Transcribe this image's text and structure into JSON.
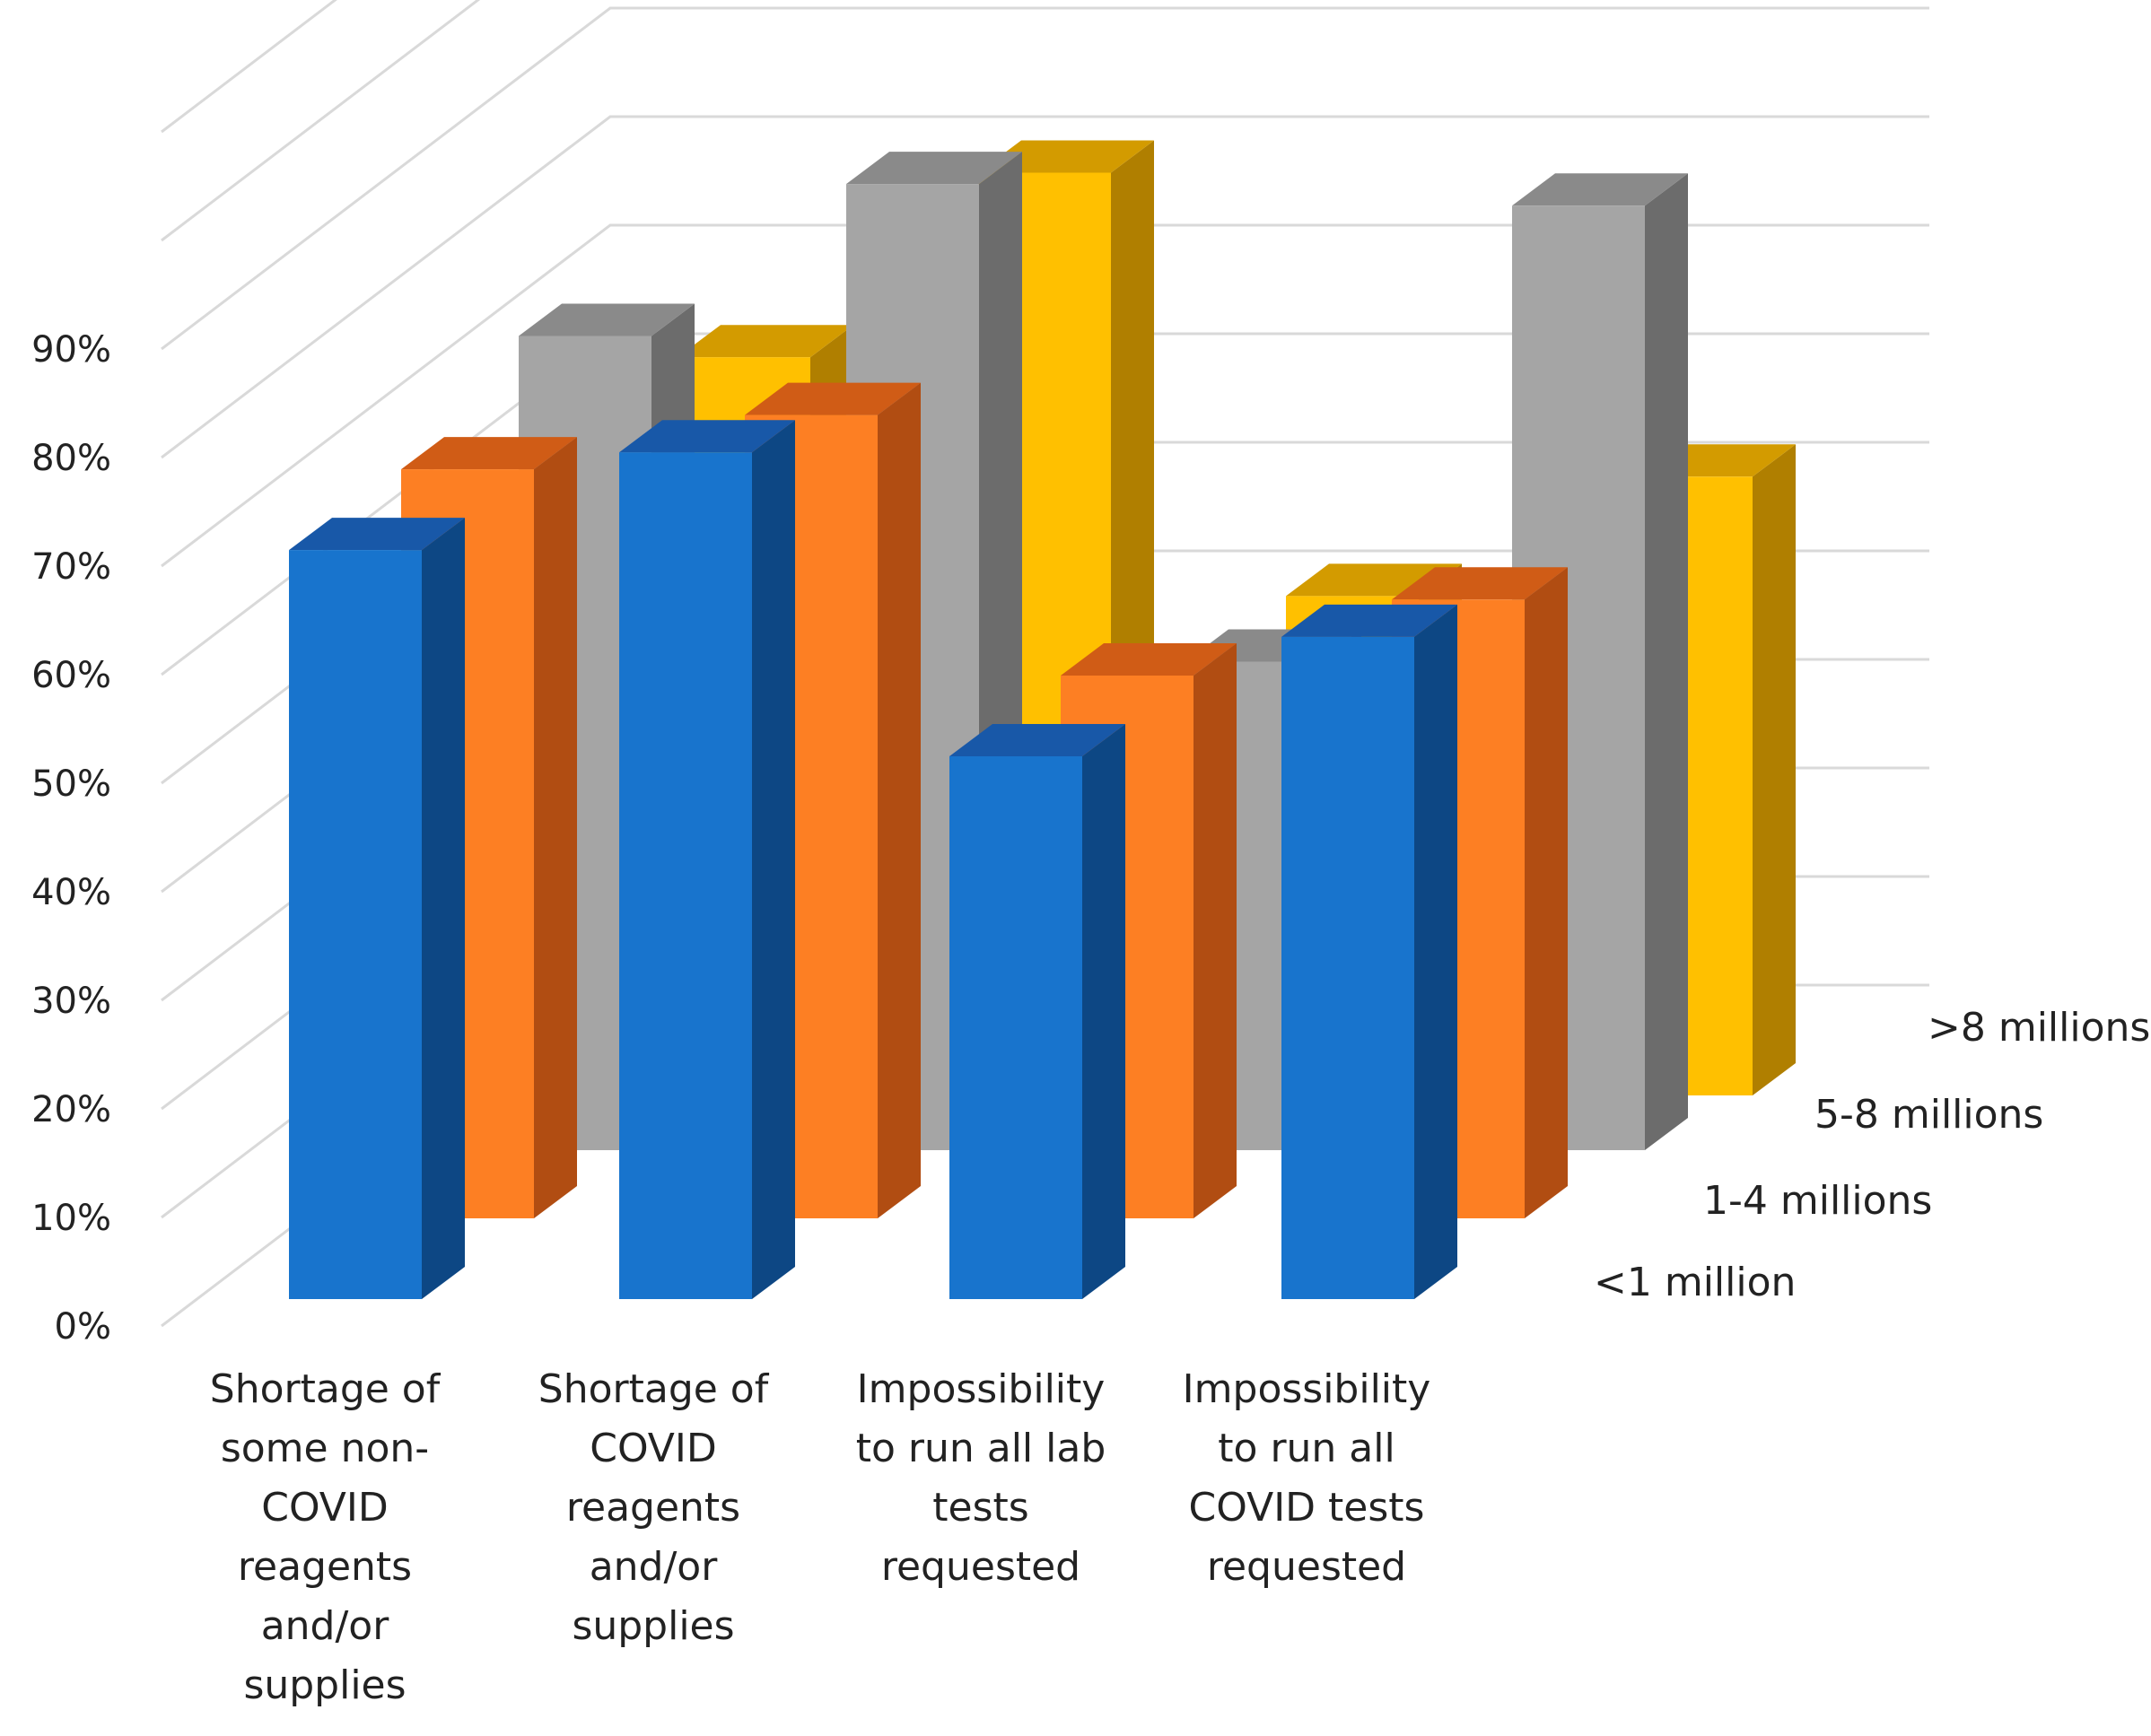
{
  "chart_data": {
    "type": "bar",
    "variant": "3d-column",
    "title": "",
    "xlabel": "",
    "ylabel": "",
    "ylim": [
      0,
      90
    ],
    "y_ticks": [
      "0%",
      "10%",
      "20%",
      "30%",
      "40%",
      "50%",
      "60%",
      "70%",
      "80%",
      "90%"
    ],
    "categories": [
      [
        "Shortage of",
        "some non-",
        "COVID",
        "reagents",
        "and/or",
        "supplies"
      ],
      [
        "Shortage of",
        "COVID",
        "reagents",
        "and/or",
        "supplies"
      ],
      [
        "Impossibility",
        "to run all lab",
        "tests",
        "requested"
      ],
      [
        "Impossibility",
        "to run all",
        "COVID tests",
        "requested"
      ]
    ],
    "series": [
      {
        "name": "<1 million",
        "values": [
          69,
          78,
          50,
          61
        ],
        "colors": {
          "front": "#1874cd",
          "side": "#0d4784",
          "top": "#1858a8"
        }
      },
      {
        "name": "1-4 millions",
        "values": [
          69,
          74,
          50,
          57
        ],
        "colors": {
          "front": "#fd7f23",
          "side": "#b14d12",
          "top": "#d05c16"
        }
      },
      {
        "name": "5-8 millions",
        "values": [
          75,
          89,
          45,
          87
        ],
        "colors": {
          "front": "#a5a5a5",
          "side": "#6c6c6c",
          "top": "#8a8a8a"
        }
      },
      {
        "name": ">8 millions",
        "values": [
          68,
          85,
          46,
          57
        ],
        "colors": {
          "front": "#ffc000",
          "side": "#b07f00",
          "top": "#d39b00"
        }
      }
    ]
  }
}
